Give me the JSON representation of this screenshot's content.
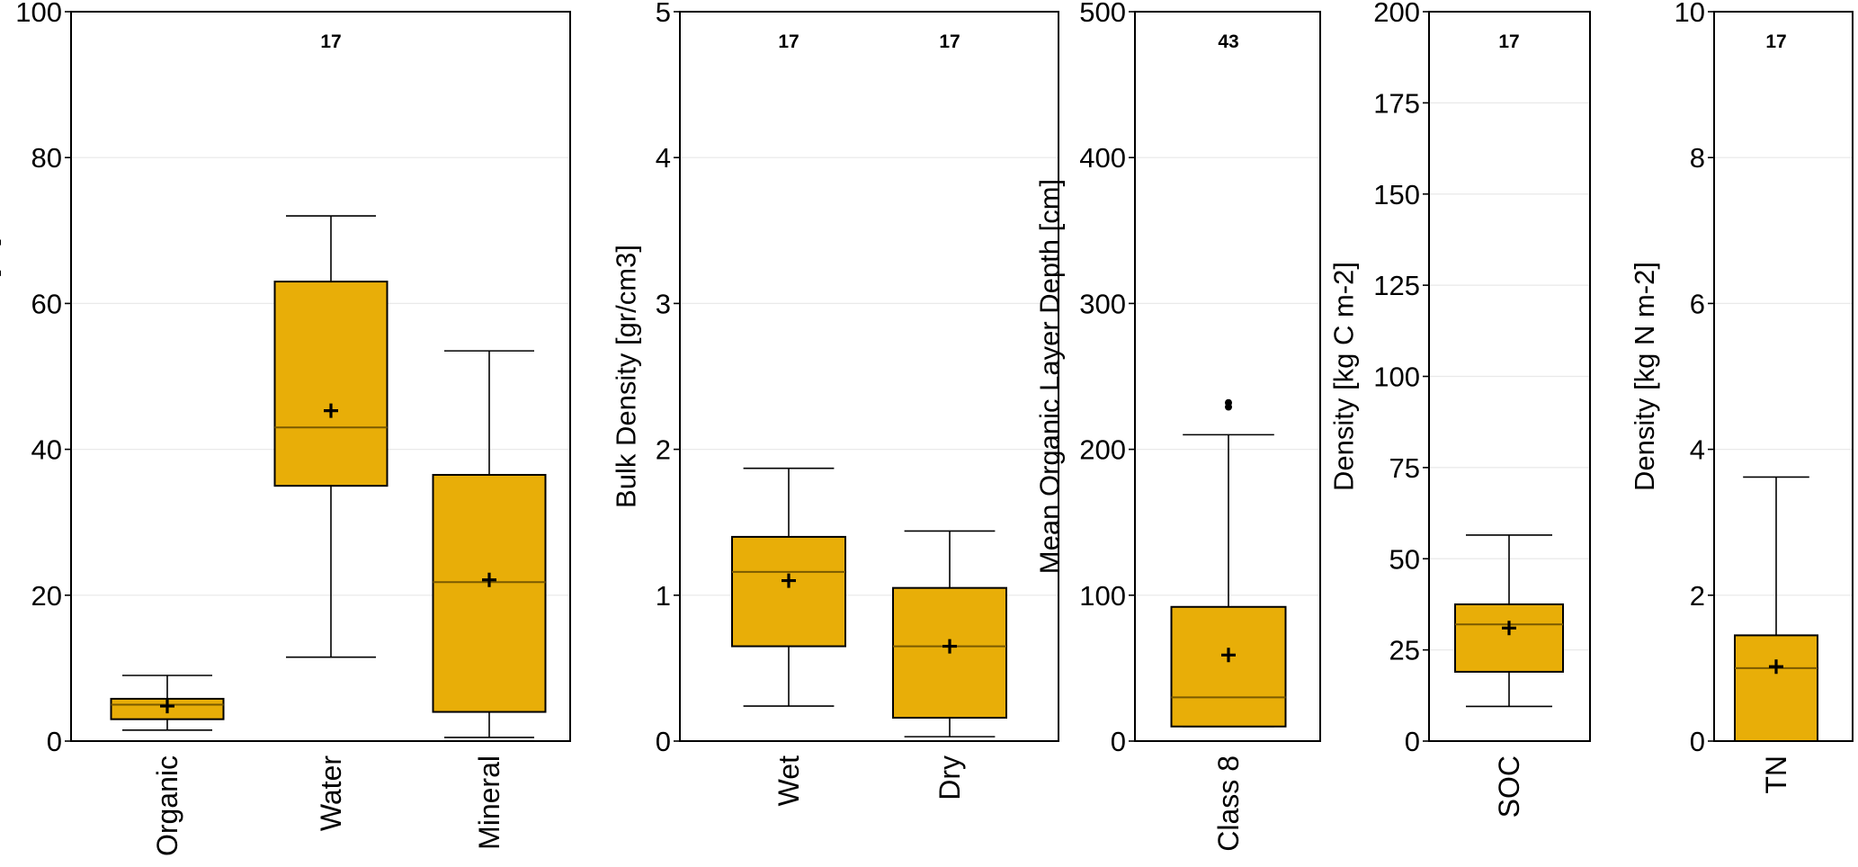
{
  "colors": {
    "box_fill": "#E8AE08",
    "box_stroke": "#000000",
    "median": "#7a5a00",
    "grid": "#e9e9e9",
    "frame": "#000000"
  },
  "chart_data": [
    {
      "type": "box",
      "ylabel": "Volumetric content [%]",
      "ylim": [
        0,
        100
      ],
      "yticks": [
        0,
        20,
        40,
        60,
        80,
        100
      ],
      "grid": true,
      "n_labels": [
        {
          "text": "17",
          "category": "Water"
        }
      ],
      "boxes": [
        {
          "category": "Organic",
          "whisker_low": 1.5,
          "q1": 3,
          "median": 5,
          "q3": 5.8,
          "whisker_high": 9,
          "mean": 4.8,
          "outliers": []
        },
        {
          "category": "Water",
          "whisker_low": 11.5,
          "q1": 35,
          "median": 43,
          "q3": 63,
          "whisker_high": 72,
          "mean": 45.3,
          "outliers": []
        },
        {
          "category": "Mineral",
          "whisker_low": 0.5,
          "q1": 4,
          "median": 21.8,
          "q3": 36.5,
          "whisker_high": 53.5,
          "mean": 22.1,
          "outliers": []
        }
      ]
    },
    {
      "type": "box",
      "ylabel": "Bulk Density [gr/cm3]",
      "ylim": [
        0,
        5
      ],
      "yticks": [
        0,
        1,
        2,
        3,
        4,
        5
      ],
      "grid": true,
      "n_labels": [
        {
          "text": "17",
          "category": "Wet"
        },
        {
          "text": "17",
          "category": "Dry"
        }
      ],
      "boxes": [
        {
          "category": "Wet",
          "whisker_low": 0.24,
          "q1": 0.65,
          "median": 1.16,
          "q3": 1.4,
          "whisker_high": 1.87,
          "mean": 1.1,
          "outliers": []
        },
        {
          "category": "Dry",
          "whisker_low": 0.03,
          "q1": 0.16,
          "median": 0.65,
          "q3": 1.05,
          "whisker_high": 1.44,
          "mean": 0.65,
          "outliers": []
        }
      ]
    },
    {
      "type": "box",
      "ylabel": "Mean Organic Layer Depth [cm]",
      "ylim": [
        0,
        500
      ],
      "yticks": [
        0,
        100,
        200,
        300,
        400,
        500
      ],
      "grid": true,
      "n_labels": [
        {
          "text": "43",
          "category": "Class 8"
        }
      ],
      "boxes": [
        {
          "category": "Class 8",
          "whisker_low": 10,
          "q1": 10,
          "median": 30,
          "q3": 92,
          "whisker_high": 210,
          "mean": 59,
          "outliers": [
            229,
            232
          ]
        }
      ]
    },
    {
      "type": "box",
      "ylabel": "Density [kg C m-2]",
      "ylim": [
        0,
        200
      ],
      "yticks": [
        0,
        25,
        50,
        75,
        100,
        125,
        150,
        175,
        200
      ],
      "grid": true,
      "n_labels": [
        {
          "text": "17",
          "category": "SOC"
        }
      ],
      "boxes": [
        {
          "category": "SOC",
          "whisker_low": 9.5,
          "q1": 19,
          "median": 32,
          "q3": 37.5,
          "whisker_high": 56.5,
          "mean": 31,
          "outliers": []
        }
      ]
    },
    {
      "type": "box",
      "ylabel": "Density [kg N m-2]",
      "ylim": [
        0,
        10
      ],
      "yticks": [
        0,
        2,
        4,
        6,
        8,
        10
      ],
      "grid": true,
      "n_labels": [
        {
          "text": "17",
          "category": "TN"
        }
      ],
      "boxes": [
        {
          "category": "TN",
          "whisker_low": 0,
          "q1": 0,
          "median": 1.0,
          "q3": 1.45,
          "whisker_high": 3.62,
          "mean": 1.02,
          "outliers": []
        }
      ]
    }
  ]
}
